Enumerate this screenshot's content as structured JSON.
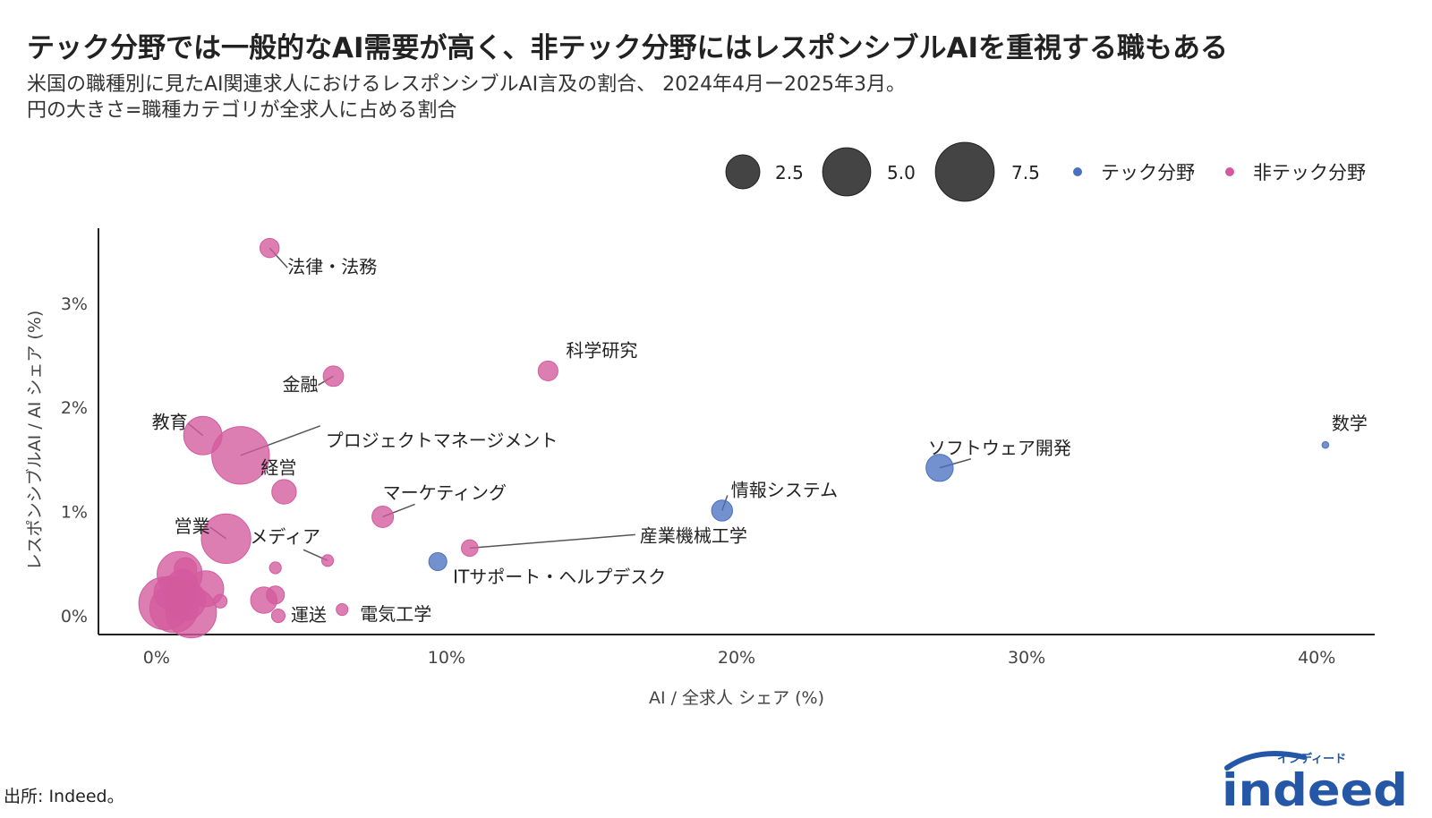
{
  "title": "テック分野では一般的なAI需要が高く、非テック分野にはレスポンシブルAIを重視する職もある",
  "subtitle_line1": "米国の職種別に見たAI関連求人におけるレスポンシブルAI言及の割合、 2024年4月ー2025年3月。",
  "subtitle_line2": "円の大きさ=職種カテゴリが全求人に占める割合",
  "source": "出所: Indeed。",
  "logo": {
    "main": "indeed",
    "katakana": "インディード",
    "color": "#2557a7"
  },
  "chart_data": {
    "type": "scatter",
    "xlabel": "AI / 全求人 シェア (%)",
    "ylabel": "レスポンシブルAI / AI シェア (%)",
    "xlim": [
      -2,
      42
    ],
    "ylim": [
      -0.18,
      3.72
    ],
    "x_ticks": [
      0,
      10,
      20,
      30,
      40
    ],
    "x_tick_labels": [
      "0%",
      "10%",
      "20%",
      "30%",
      "40%"
    ],
    "y_ticks": [
      0,
      1,
      2,
      3
    ],
    "y_tick_labels": [
      "0%",
      "1%",
      "2%",
      "3%"
    ],
    "grid": false,
    "legend": {
      "placement": "top-right",
      "size_entries": [
        {
          "label": "2.5",
          "value": 2.5
        },
        {
          "label": "5.0",
          "value": 5.0
        },
        {
          "label": "7.5",
          "value": 7.5
        }
      ],
      "group_entries": [
        {
          "label": "テック分野",
          "group": "tech"
        },
        {
          "label": "非テック分野",
          "group": "nontech"
        }
      ]
    },
    "colors": {
      "tech": "#4a72c0",
      "nontech": "#d45a9e"
    },
    "points": [
      {
        "label": "法律・法務",
        "x": 3.9,
        "y": 3.53,
        "size": 0.8,
        "group": "nontech"
      },
      {
        "label": "科学研究",
        "x": 13.5,
        "y": 2.35,
        "size": 0.85,
        "group": "nontech"
      },
      {
        "label": "金融",
        "x": 6.1,
        "y": 2.3,
        "size": 0.9,
        "group": "nontech"
      },
      {
        "label": "教育",
        "x": 1.6,
        "y": 1.73,
        "size": 3.2,
        "group": "nontech"
      },
      {
        "label": "プロジェクトマネージメント",
        "x": 2.9,
        "y": 1.54,
        "size": 7.2,
        "group": "nontech"
      },
      {
        "label": "経営",
        "x": 4.4,
        "y": 1.19,
        "size": 1.3,
        "group": "nontech"
      },
      {
        "label": "マーケティング",
        "x": 7.8,
        "y": 0.95,
        "size": 1.0,
        "group": "nontech"
      },
      {
        "label": "営業",
        "x": 2.4,
        "y": 0.74,
        "size": 5.3,
        "group": "nontech"
      },
      {
        "label": "メディア",
        "x": 5.9,
        "y": 0.53,
        "size": 0.3,
        "group": "nontech"
      },
      {
        "label": "産業機械工学",
        "x": 10.8,
        "y": 0.65,
        "size": 0.6,
        "group": "nontech"
      },
      {
        "label": "運送",
        "x": 4.2,
        "y": 0.0,
        "size": 0.4,
        "group": "nontech"
      },
      {
        "label": "電気工学",
        "x": 6.4,
        "y": 0.06,
        "size": 0.3,
        "group": "nontech"
      },
      {
        "label": "",
        "x": 4.1,
        "y": 0.46,
        "size": 0.3,
        "group": "nontech"
      },
      {
        "label": "",
        "x": 4.1,
        "y": 0.2,
        "size": 0.7,
        "group": "nontech"
      },
      {
        "label": "",
        "x": 3.7,
        "y": 0.15,
        "size": 1.5,
        "group": "nontech"
      },
      {
        "label": "",
        "x": 2.2,
        "y": 0.14,
        "size": 0.4,
        "group": "nontech"
      },
      {
        "label": "",
        "x": 1.0,
        "y": 0.45,
        "size": 1.1,
        "group": "nontech"
      },
      {
        "label": "",
        "x": 0.8,
        "y": 0.4,
        "size": 4.4,
        "group": "nontech"
      },
      {
        "label": "",
        "x": 1.7,
        "y": 0.26,
        "size": 2.8,
        "group": "nontech"
      },
      {
        "label": "",
        "x": 0.3,
        "y": 0.12,
        "size": 6.0,
        "group": "nontech"
      },
      {
        "label": "",
        "x": 0.6,
        "y": 0.07,
        "size": 5.0,
        "group": "nontech"
      },
      {
        "label": "",
        "x": 1.0,
        "y": 0.15,
        "size": 3.5,
        "group": "nontech"
      },
      {
        "label": "",
        "x": 1.2,
        "y": 0.03,
        "size": 5.5,
        "group": "nontech"
      },
      {
        "label": "",
        "x": 0.5,
        "y": 0.22,
        "size": 2.5,
        "group": "nontech"
      },
      {
        "label": "",
        "x": 0.9,
        "y": 0.3,
        "size": 2.0,
        "group": "nontech"
      },
      {
        "label": "ITサポート・ヘルプデスク",
        "x": 9.7,
        "y": 0.52,
        "size": 0.7,
        "group": "tech"
      },
      {
        "label": "情報システム",
        "x": 19.5,
        "y": 1.01,
        "size": 0.95,
        "group": "tech"
      },
      {
        "label": "ソフトウェア開発",
        "x": 27.0,
        "y": 1.42,
        "size": 1.6,
        "group": "tech"
      },
      {
        "label": "数学",
        "x": 40.3,
        "y": 1.64,
        "size": 0.1,
        "group": "tech"
      }
    ]
  }
}
